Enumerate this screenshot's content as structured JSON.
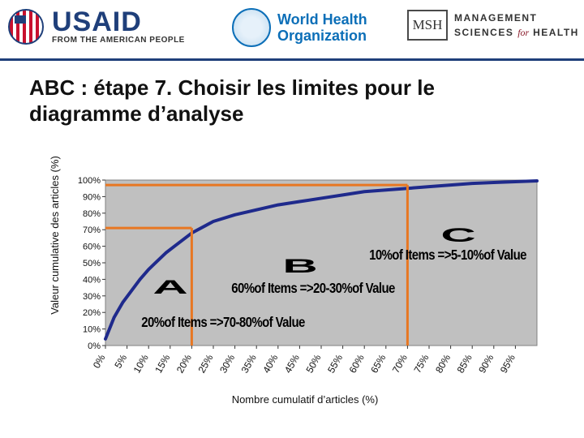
{
  "header": {
    "usaid_name": "USAID",
    "usaid_tagline": "FROM THE AMERICAN PEOPLE",
    "who_line1": "World Health",
    "who_line2": "Organization",
    "msh_mark": "MSH",
    "msh_line1": "MANAGEMENT",
    "msh_line2a": "SCIENCES",
    "msh_line2b": "for",
    "msh_line2c": "HEALTH"
  },
  "slide": {
    "title": "ABC : étape 7. Choisir les limites pour le diagramme d’analyse"
  },
  "chart_data": {
    "type": "line",
    "xlabel": "Nombre cumulatif d’articles (%)",
    "ylabel": "Valeur cumulative des articles (%)",
    "x_ticks": [
      "0%",
      "5%",
      "10%",
      "15%",
      "20%",
      "25%",
      "30%",
      "35%",
      "40%",
      "45%",
      "50%",
      "55%",
      "60%",
      "65%",
      "70%",
      "75%",
      "80%",
      "85%",
      "90%",
      "95%"
    ],
    "y_ticks": [
      "100%",
      "90%",
      "80%",
      "70%",
      "60%",
      "50%",
      "40%",
      "30%",
      "20%",
      "10%",
      "0%"
    ],
    "xlim": [
      0,
      100
    ],
    "ylim": [
      0,
      100
    ],
    "series": [
      {
        "x": [
          0,
          2,
          4,
          6,
          8,
          10,
          12,
          14,
          16,
          18,
          20,
          25,
          30,
          35,
          40,
          45,
          50,
          55,
          60,
          65,
          70,
          75,
          80,
          85,
          90,
          95,
          100
        ],
        "values": [
          4,
          17,
          26,
          33,
          40,
          46,
          51,
          56,
          60,
          64,
          68,
          75,
          79,
          82,
          85,
          87,
          89,
          91,
          93,
          94,
          95,
          96,
          97,
          98,
          98.5,
          99,
          99.5
        ]
      }
    ],
    "cutoff_lines": [
      {
        "x": 20,
        "y": 71
      },
      {
        "x": 70,
        "y": 97
      }
    ],
    "categories": [
      {
        "letter": "A",
        "note": "20%of Items =>70-80%of Value"
      },
      {
        "letter": "B",
        "note": "60%of Items =>20-30%of Value"
      },
      {
        "letter": "C",
        "note": "10%of Items =>5-10%of Value"
      }
    ],
    "colors": {
      "plot_bg": "#c0c0c0",
      "curve": "#1f2a8c",
      "cutoff": "#e87722"
    },
    "grid": false
  }
}
